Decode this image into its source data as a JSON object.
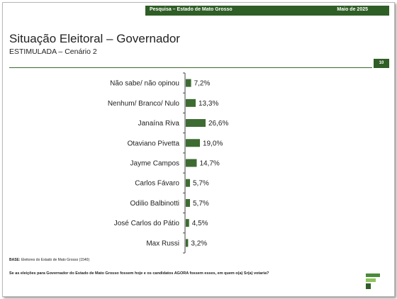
{
  "header": {
    "survey": "Pesquisa – Estado de Mato Grosso",
    "date": "Maio de 2025"
  },
  "title": "Situação Eleitoral – Governador",
  "subtitle": "ESTIMULADA – Cenário 2",
  "page_number": "10",
  "base_label": "BASE:",
  "base_text": " Eleitores do Estado de Mato Grosso (1540)",
  "question": "Se as eleições para Governador do Estado de Mato Grosso fossem hoje e os candidatos AGORA fossem esses, em quem o(a) Sr(a) votaria?",
  "colors": {
    "accent": "#2f5e26",
    "bar": "#3d6b31"
  },
  "chart_data": {
    "type": "bar",
    "orientation": "horizontal",
    "categories": [
      "Não sabe/ não opinou",
      "Nenhum/ Branco/ Nulo",
      "Janaína Riva",
      "Otaviano Pivetta",
      "Jayme Campos",
      "Carlos Fávaro",
      "Odilio Balbinotti",
      "José Carlos do Pátio",
      "Max Russi"
    ],
    "values": [
      7.2,
      13.3,
      26.6,
      19.0,
      14.7,
      5.7,
      5.7,
      4.5,
      3.2
    ],
    "value_labels": [
      "7,2%",
      "13,3%",
      "26,6%",
      "19,0%",
      "14,7%",
      "5,7%",
      "5,7%",
      "4,5%",
      "3,2%"
    ],
    "unit": "%"
  }
}
